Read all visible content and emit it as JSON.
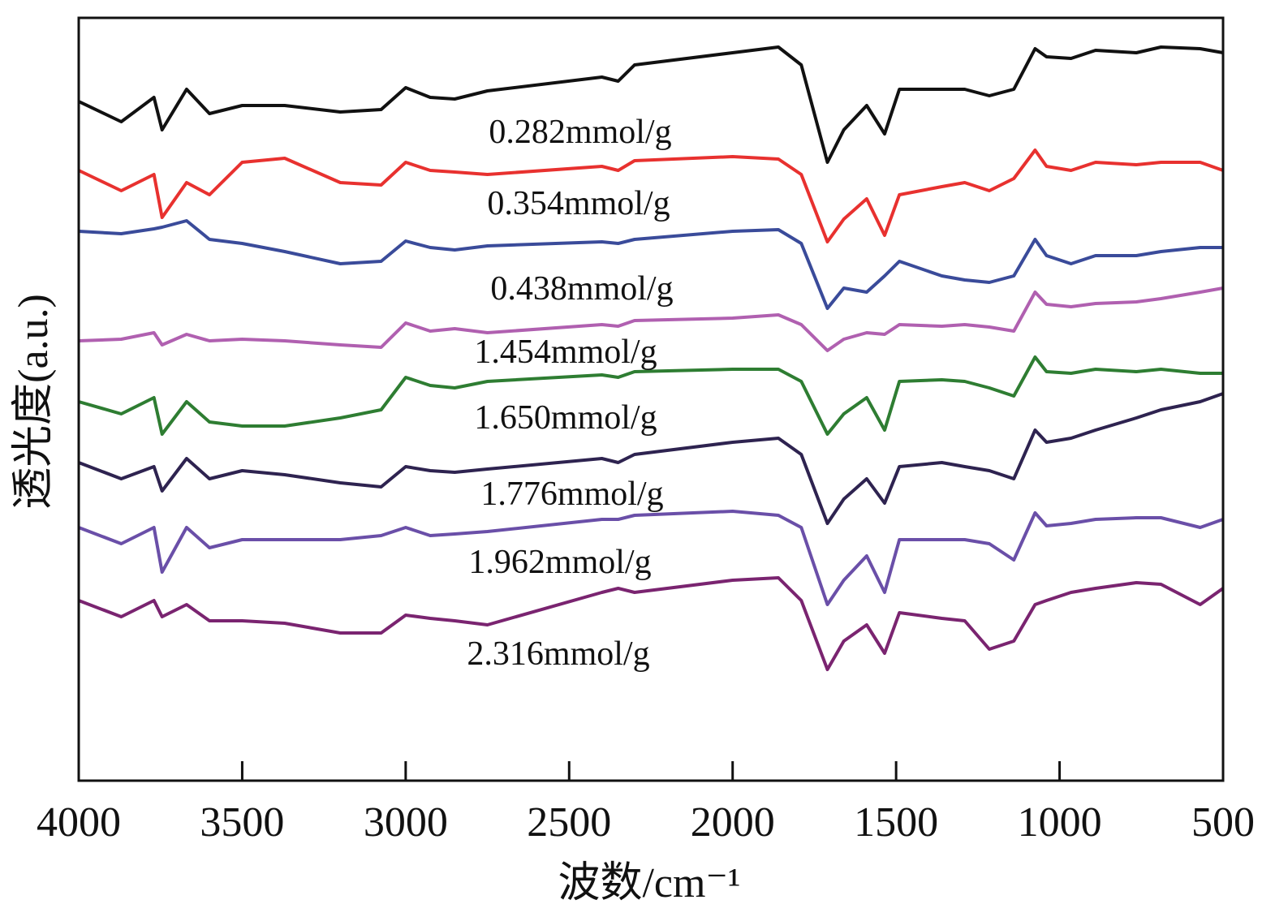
{
  "chart_data": {
    "type": "line",
    "title": "",
    "xlabel": "波数/cm⁻¹",
    "ylabel": "透光度(a.u.)",
    "xlim": [
      4000,
      500
    ],
    "ylim": [
      0,
      94
    ],
    "x_reversed": true,
    "x_ticks": [
      4000,
      3500,
      3000,
      2500,
      2000,
      1500,
      1000,
      500
    ],
    "x_tick_labels": [
      "4000",
      "3500",
      "3000",
      "2500",
      "2000",
      "1500",
      "1000",
      "500"
    ],
    "grid": false,
    "legend": "inline labels under each curve",
    "x": [
      4000,
      3870,
      3770,
      3745,
      3670,
      3600,
      3500,
      3370,
      3200,
      3075,
      3000,
      2925,
      2850,
      2750,
      2400,
      2350,
      2300,
      2000,
      1860,
      1790,
      1710,
      1660,
      1590,
      1535,
      1490,
      1360,
      1290,
      1215,
      1140,
      1075,
      1040,
      965,
      890,
      765,
      690,
      570,
      500
    ],
    "series": [
      {
        "name": "0.282mmol/g",
        "color": "#111111",
        "values": [
          83.7,
          81.2,
          84.2,
          80.2,
          85.2,
          82.2,
          83.2,
          83.2,
          82.4,
          82.7,
          85.4,
          84.2,
          84.0,
          85.0,
          86.7,
          86.2,
          88.2,
          89.7,
          90.4,
          88.2,
          76.2,
          80.2,
          83.2,
          79.7,
          85.2,
          85.2,
          85.2,
          84.4,
          85.2,
          90.2,
          89.2,
          89.0,
          90.0,
          89.7,
          90.4,
          90.2,
          89.7
        ]
      },
      {
        "name": "0.354mmol/g",
        "color": "#e8312f",
        "values": [
          75.2,
          72.7,
          74.7,
          69.4,
          73.7,
          72.2,
          76.2,
          76.7,
          73.7,
          73.4,
          76.2,
          75.2,
          75.0,
          74.7,
          75.7,
          75.2,
          76.4,
          76.9,
          76.6,
          74.7,
          66.4,
          69.2,
          71.7,
          67.2,
          72.2,
          73.2,
          73.7,
          72.7,
          74.2,
          77.7,
          75.7,
          75.2,
          76.2,
          75.9,
          76.2,
          76.2,
          75.2
        ]
      },
      {
        "name": "0.438mmol/g",
        "color": "#3a4b9a",
        "values": [
          67.7,
          67.4,
          68.0,
          68.2,
          69.0,
          66.7,
          66.2,
          65.2,
          63.7,
          64.0,
          66.5,
          65.7,
          65.4,
          65.9,
          66.4,
          66.2,
          66.7,
          67.7,
          67.9,
          66.2,
          58.2,
          60.7,
          60.2,
          62.2,
          64.0,
          62.2,
          61.7,
          61.4,
          62.2,
          66.7,
          64.7,
          63.7,
          64.7,
          64.7,
          65.2,
          65.7,
          65.7
        ]
      },
      {
        "name": "1.454mmol/g",
        "color": "#b060b0",
        "values": [
          54.2,
          54.4,
          55.2,
          53.7,
          55.0,
          54.2,
          54.4,
          54.2,
          53.7,
          53.4,
          56.4,
          55.4,
          55.7,
          55.2,
          56.2,
          56.0,
          56.7,
          57.0,
          57.4,
          56.2,
          53.0,
          54.4,
          55.2,
          55.0,
          56.2,
          56.0,
          56.2,
          55.9,
          55.4,
          60.2,
          58.7,
          58.4,
          58.8,
          59.0,
          59.4,
          60.2,
          60.7
        ]
      },
      {
        "name": "1.650mmol/g",
        "color": "#2e7d32",
        "values": [
          46.7,
          45.2,
          47.2,
          42.7,
          46.7,
          44.2,
          43.7,
          43.7,
          44.7,
          45.7,
          49.7,
          48.7,
          48.4,
          49.2,
          50.0,
          49.7,
          50.4,
          50.7,
          50.7,
          49.2,
          42.7,
          45.2,
          47.2,
          43.2,
          49.2,
          49.4,
          49.2,
          48.4,
          47.4,
          52.2,
          50.4,
          50.2,
          50.7,
          50.4,
          50.7,
          50.2,
          50.2
        ]
      },
      {
        "name": "1.776mmol/g",
        "color": "#2e2350",
        "values": [
          39.2,
          37.2,
          38.7,
          35.7,
          39.7,
          37.2,
          38.2,
          37.7,
          36.7,
          36.2,
          38.7,
          38.2,
          38.0,
          38.4,
          39.7,
          39.2,
          40.2,
          41.7,
          42.2,
          40.2,
          31.7,
          34.7,
          37.2,
          34.2,
          38.7,
          39.2,
          38.7,
          38.2,
          37.2,
          43.2,
          41.7,
          42.2,
          43.2,
          44.7,
          45.7,
          46.7,
          47.7
        ]
      },
      {
        "name": "1.962mmol/g",
        "color": "#6a4fa8",
        "values": [
          31.2,
          29.2,
          31.2,
          25.7,
          31.2,
          28.7,
          29.7,
          29.7,
          29.7,
          30.2,
          31.2,
          30.2,
          30.4,
          30.7,
          32.2,
          32.2,
          32.7,
          33.2,
          32.7,
          31.2,
          21.7,
          24.7,
          27.7,
          23.2,
          29.7,
          29.7,
          29.7,
          29.2,
          27.2,
          33.0,
          31.4,
          31.7,
          32.2,
          32.4,
          32.4,
          31.2,
          32.2
        ]
      },
      {
        "name": "2.316mmol/g",
        "color": "#7a2470",
        "values": [
          22.2,
          20.2,
          22.2,
          20.2,
          21.7,
          19.7,
          19.7,
          19.4,
          18.2,
          18.2,
          20.4,
          20.0,
          19.7,
          19.2,
          23.2,
          23.7,
          23.2,
          24.7,
          25.0,
          22.2,
          13.7,
          17.2,
          19.2,
          15.7,
          20.7,
          20.0,
          19.7,
          16.2,
          17.2,
          21.7,
          22.2,
          23.2,
          23.7,
          24.4,
          24.2,
          21.7,
          23.7
        ]
      }
    ]
  }
}
